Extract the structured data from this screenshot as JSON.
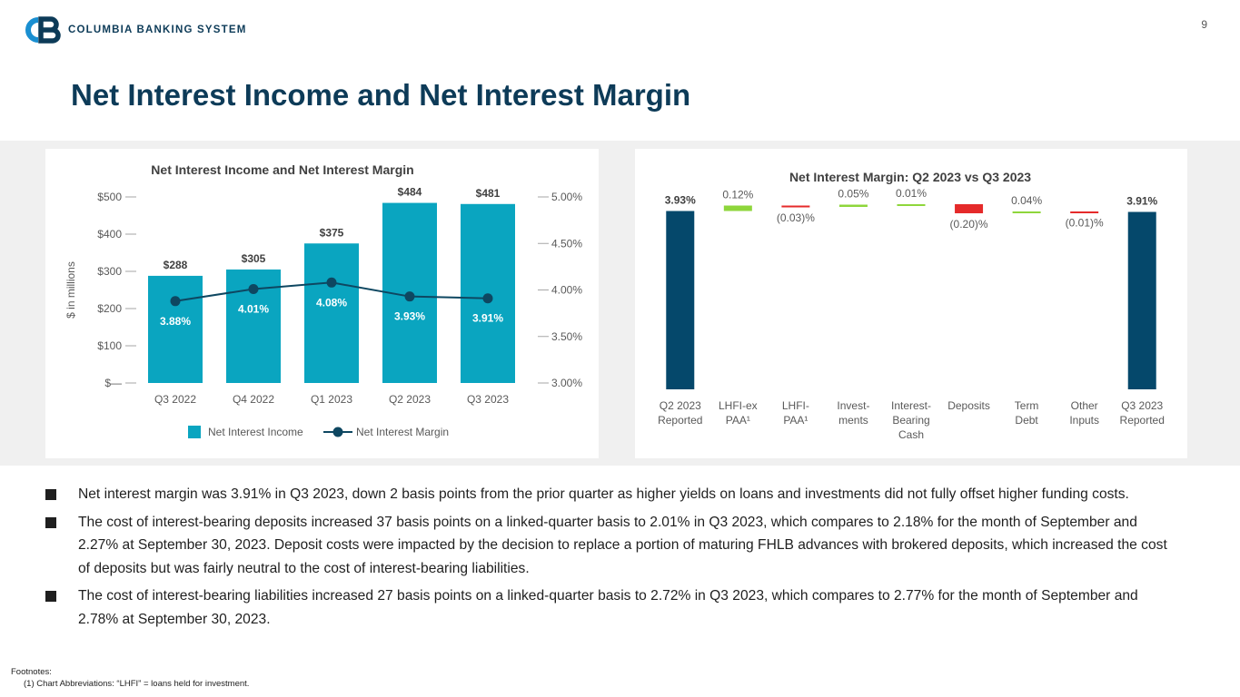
{
  "header": {
    "logo_text": "COLUMBIA BANKING SYSTEM",
    "page_number": "9",
    "title": "Net Interest Income and Net Interest Margin"
  },
  "colors": {
    "navy": "#0d3b58",
    "teal_bar": "#0aa5c0",
    "dark_line": "#0e4761",
    "green": "#8ed63b",
    "red": "#e52a2a",
    "waterfall_dark": "#05486b"
  },
  "chart_data": [
    {
      "type": "bar",
      "title": "Net Interest Income and Net Interest Margin",
      "ylabel": "$ in millions",
      "categories": [
        "Q3 2022",
        "Q4 2022",
        "Q1 2023",
        "Q2 2023",
        "Q3 2023"
      ],
      "ylim": [
        0,
        500
      ],
      "y_ticks": [
        0,
        100,
        200,
        300,
        400,
        500
      ],
      "y_tick_labels": [
        "$—",
        "$100",
        "$200",
        "$300",
        "$400",
        "$500"
      ],
      "y2lim": [
        3.0,
        5.0
      ],
      "y2_ticks": [
        3.0,
        3.5,
        4.0,
        4.5,
        5.0
      ],
      "y2_tick_labels": [
        "3.00%",
        "3.50%",
        "4.00%",
        "4.50%",
        "5.00%"
      ],
      "series": [
        {
          "name": "Net Interest Income",
          "kind": "bar",
          "axis": "left",
          "values": [
            288,
            305,
            375,
            484,
            481
          ],
          "labels": [
            "$288",
            "$305",
            "$375",
            "$484",
            "$481"
          ]
        },
        {
          "name": "Net Interest Margin",
          "kind": "line",
          "axis": "right",
          "values": [
            3.88,
            4.01,
            4.08,
            3.93,
            3.91
          ],
          "labels": [
            "3.88%",
            "4.01%",
            "4.08%",
            "3.93%",
            "3.91%"
          ]
        }
      ],
      "legend": [
        "Net Interest Income",
        "Net Interest Margin"
      ],
      "legend_position": "bottom",
      "grid": false
    },
    {
      "type": "waterfall",
      "title": "Net Interest Margin: Q2 2023 vs Q3 2023",
      "ylim": [
        0,
        4.3
      ],
      "categories": [
        [
          "Q2 2023",
          "Reported"
        ],
        [
          "LHFI-ex",
          "PAA¹"
        ],
        [
          "LHFI-",
          "PAA¹"
        ],
        [
          "Invest-",
          "ments"
        ],
        [
          "Interest-",
          "Bearing",
          "Cash"
        ],
        [
          "Deposits"
        ],
        [
          "Term",
          "Debt"
        ],
        [
          "Other",
          "Inputs"
        ],
        [
          "Q3 2023",
          "Reported"
        ]
      ],
      "values": [
        3.93,
        0.12,
        -0.03,
        0.05,
        0.01,
        -0.2,
        0.04,
        -0.01,
        3.91
      ],
      "is_total": [
        true,
        false,
        false,
        false,
        false,
        false,
        false,
        false,
        true
      ],
      "labels": [
        "3.93%",
        "0.12%",
        "(0.03)%",
        "0.05%",
        "0.01%",
        "(0.20)%",
        "0.04%",
        "(0.01)%",
        "3.91%"
      ]
    }
  ],
  "bullets": [
    "Net interest margin was 3.91% in Q3 2023, down 2 basis points from the prior quarter as higher yields on loans and investments did not fully offset higher funding costs.",
    "The cost of interest-bearing deposits increased 37 basis points on a linked-quarter basis to 2.01% in Q3 2023, which compares to 2.18% for the month of September and 2.27% at September 30, 2023. Deposit costs were impacted by the decision to replace a portion of maturing FHLB advances with brokered deposits, which increased the cost of deposits but was fairly neutral to the cost of interest-bearing liabilities.",
    "The cost of interest-bearing liabilities increased 27 basis points on a linked-quarter basis to 2.72% in Q3 2023, which compares to 2.77% for the month of September and 2.78% at September 30, 2023."
  ],
  "footnotes": {
    "heading": "Footnotes:",
    "items": [
      "(1)  Chart Abbreviations: “LHFI” = loans held for investment."
    ]
  }
}
